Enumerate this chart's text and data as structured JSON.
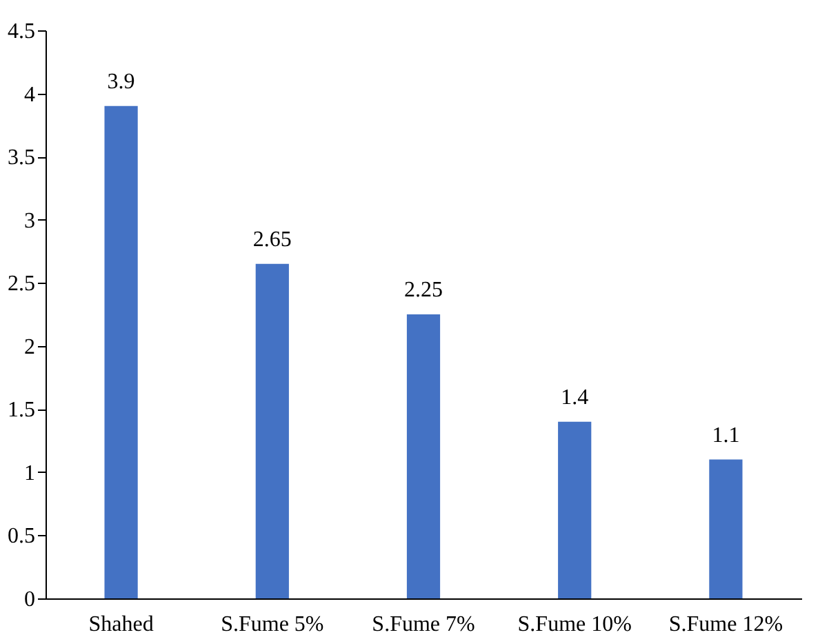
{
  "chart_data": {
    "type": "bar",
    "categories": [
      "Shahed",
      "S.Fume 5%",
      "S.Fume 7%",
      "S.Fume 10%",
      "S.Fume 12%"
    ],
    "values": [
      3.9,
      2.65,
      2.25,
      1.4,
      1.1
    ],
    "color": "#4472c4",
    "ylim": [
      0,
      4.5
    ],
    "yticks": [
      0,
      0.5,
      1,
      1.5,
      2,
      2.5,
      3,
      3.5,
      4,
      4.5
    ],
    "data_labels": true,
    "grid": false
  }
}
